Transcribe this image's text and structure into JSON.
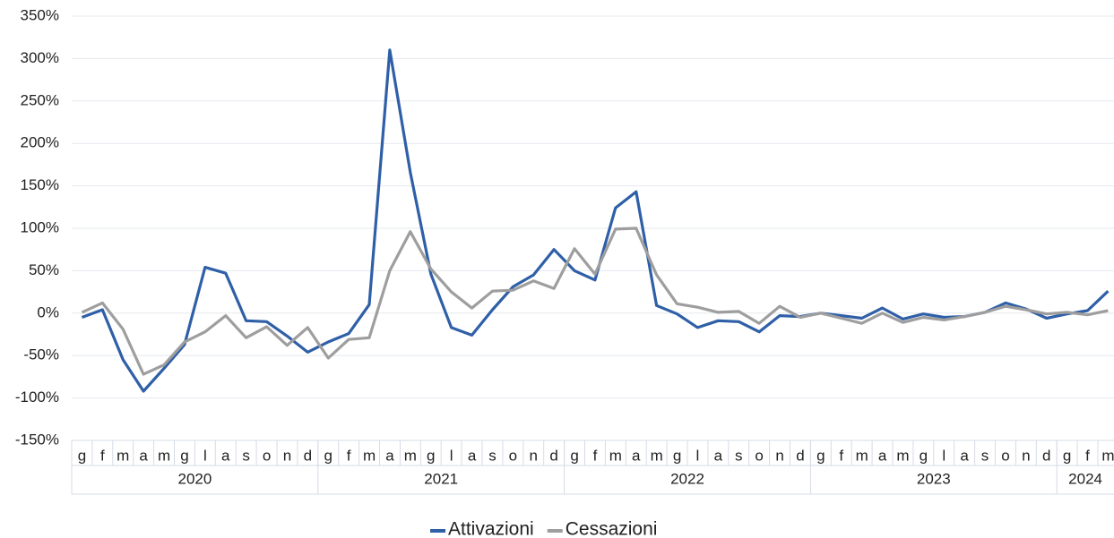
{
  "chart_data": {
    "type": "line",
    "categories": [
      "g",
      "f",
      "m",
      "a",
      "m",
      "g",
      "l",
      "a",
      "s",
      "o",
      "n",
      "d",
      "g",
      "f",
      "m",
      "a",
      "m",
      "g",
      "l",
      "a",
      "s",
      "o",
      "n",
      "d",
      "g",
      "f",
      "m",
      "a",
      "m",
      "g",
      "l",
      "a",
      "s",
      "o",
      "n",
      "d",
      "g",
      "f",
      "m",
      "a",
      "m",
      "g",
      "l",
      "a",
      "s",
      "o",
      "n",
      "d",
      "g",
      "f",
      "m"
    ],
    "groups": [
      {
        "label": "2020",
        "count": 12
      },
      {
        "label": "2021",
        "count": 12
      },
      {
        "label": "2022",
        "count": 12
      },
      {
        "label": "2023",
        "count": 12
      },
      {
        "label": "2024",
        "count": 3
      }
    ],
    "series": [
      {
        "name": "Attivazioni",
        "color": "#2f5fa7",
        "values": [
          -5,
          4,
          -55,
          -92,
          -65,
          -37,
          54,
          47,
          -9,
          -10,
          -27,
          -46,
          -34,
          -24,
          10,
          310,
          166,
          46,
          -17,
          -26,
          4,
          31,
          45,
          75,
          50,
          39,
          124,
          143,
          9,
          -1,
          -17,
          -9,
          -10,
          -22,
          -3,
          -4,
          0,
          -3,
          -6,
          6,
          -7,
          -1,
          -5,
          -4,
          1,
          12,
          5,
          -6,
          -1,
          3,
          26
        ]
      },
      {
        "name": "Cessazioni",
        "color": "#9e9e9e",
        "values": [
          1,
          12,
          -19,
          -72,
          -61,
          -34,
          -22,
          -3,
          -29,
          -16,
          -38,
          -17,
          -53,
          -31,
          -29,
          50,
          96,
          52,
          25,
          6,
          26,
          27,
          38,
          29,
          76,
          46,
          99,
          100,
          45,
          11,
          7,
          1,
          2,
          -12,
          8,
          -5,
          0,
          -6,
          -12,
          0,
          -11,
          -5,
          -8,
          -4,
          1,
          8,
          4,
          -1,
          1,
          -2,
          3
        ]
      }
    ],
    "ylim": [
      -150,
      350
    ],
    "yticks": [
      {
        "value": -150,
        "label": "-150%"
      },
      {
        "value": -100,
        "label": "-100%"
      },
      {
        "value": -50,
        "label": "-50%"
      },
      {
        "value": 0,
        "label": "0%"
      },
      {
        "value": 50,
        "label": "50%"
      },
      {
        "value": 100,
        "label": "100%"
      },
      {
        "value": 150,
        "label": "150%"
      },
      {
        "value": 200,
        "label": "200%"
      },
      {
        "value": 250,
        "label": "250%"
      },
      {
        "value": 300,
        "label": "300%"
      },
      {
        "value": 350,
        "label": "350%"
      }
    ],
    "grid": true,
    "legend": "bottom"
  }
}
